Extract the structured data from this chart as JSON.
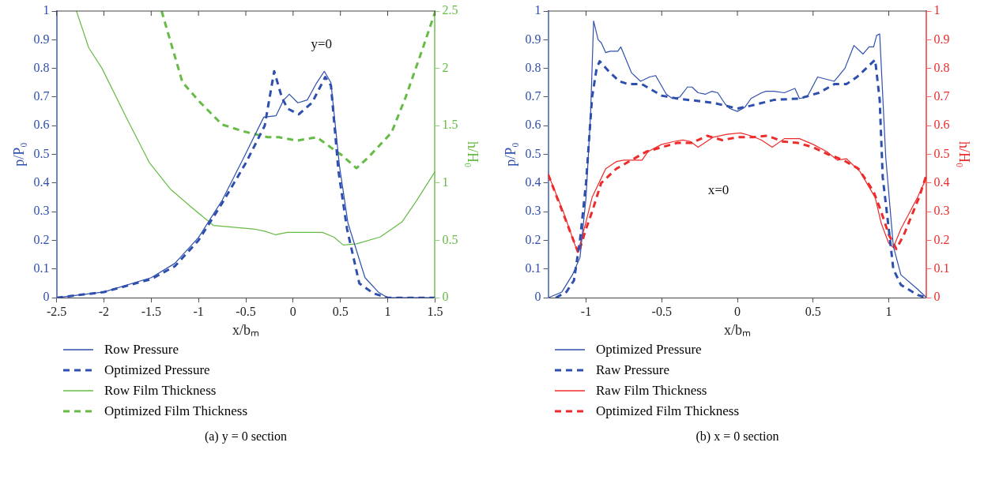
{
  "chart_data": [
    {
      "type": "line",
      "xlabel": "x/bₘ",
      "ylabel": "p/P₀",
      "y2label": "h/H₀",
      "xlim": [
        -2.5,
        1.5
      ],
      "xticks": [
        -2.5,
        -2,
        -1.5,
        -1,
        -0.5,
        0,
        0.5,
        1,
        1.5
      ],
      "ylim": [
        0,
        1
      ],
      "yticks": [
        0,
        0.1,
        0.2,
        0.3,
        0.4,
        0.5,
        0.6,
        0.7,
        0.8,
        0.9,
        1
      ],
      "y2lim": [
        0,
        2.5
      ],
      "y2ticks": [
        0,
        0.5,
        1,
        1.5,
        2,
        2.5
      ],
      "grid": false,
      "legend": "bottom",
      "marker": "none",
      "annotations": [
        "y=0",
        "(a)  y = 0 section"
      ],
      "series": [
        {
          "name": "Row Pressure",
          "color": "#2e4fad",
          "line_style": "solid",
          "x": [
            -2.5,
            -2,
            -1.5,
            -1.25,
            -1,
            -0.75,
            -0.52,
            -0.31,
            -0.18,
            -0.1,
            -0.04,
            0.05,
            0.15,
            0.25,
            0.33,
            0.4,
            0.49,
            0.58,
            0.76,
            0.9,
            1,
            1.5
          ],
          "values": [
            0,
            0.02,
            0.07,
            0.12,
            0.21,
            0.34,
            0.49,
            0.63,
            0.635,
            0.69,
            0.71,
            0.68,
            0.69,
            0.75,
            0.79,
            0.75,
            0.46,
            0.26,
            0.07,
            0.02,
            0,
            0
          ]
        },
        {
          "name": "Optimized Pressure",
          "color": "#2e4fad",
          "line_style": "dashed",
          "x": [
            -2.5,
            -2,
            -1.5,
            -1.25,
            -1,
            -0.75,
            -0.5,
            -0.3,
            -0.2,
            -0.12,
            -0.06,
            0.06,
            0.2,
            0.34,
            0.4,
            0.48,
            0.57,
            0.7,
            0.85,
            1,
            1.5
          ],
          "values": [
            0,
            0.02,
            0.065,
            0.11,
            0.2,
            0.33,
            0.47,
            0.6,
            0.79,
            0.7,
            0.66,
            0.64,
            0.68,
            0.77,
            0.74,
            0.44,
            0.24,
            0.05,
            0.015,
            0,
            0
          ]
        },
        {
          "name": "Row Film Thickness",
          "color": "#66bb44",
          "line_style": "solid",
          "axis": "y2",
          "x": [
            -2.29,
            -2.16,
            -2.02,
            -1.75,
            -1.52,
            -1.3,
            -1.09,
            -0.84,
            -0.42,
            -0.3,
            -0.19,
            -0.06,
            0.31,
            0.43,
            0.53,
            0.67,
            0.92,
            1.15,
            1.3,
            1.5
          ],
          "values": [
            2.5,
            2.18,
            2,
            1.55,
            1.18,
            0.95,
            0.8,
            0.63,
            0.6,
            0.58,
            0.55,
            0.57,
            0.57,
            0.53,
            0.46,
            0.47,
            0.53,
            0.66,
            0.84,
            1.1
          ]
        },
        {
          "name": "Optimized Film Thickness",
          "color": "#66bb44",
          "line_style": "dashed",
          "axis": "y2",
          "x": [
            -1.39,
            -1.17,
            -0.99,
            -0.75,
            -0.52,
            -0.27,
            -0.15,
            0.04,
            0.25,
            0.4,
            0.52,
            0.67,
            0.79,
            1.04,
            1.19,
            1.36,
            1.5
          ],
          "values": [
            2.5,
            1.88,
            1.71,
            1.51,
            1.45,
            1.4,
            1.4,
            1.37,
            1.4,
            1.31,
            1.24,
            1.13,
            1.22,
            1.44,
            1.75,
            2.15,
            2.49
          ]
        }
      ]
    },
    {
      "type": "line",
      "xlabel": "x/bₘ",
      "ylabel": "p/P₀",
      "y2label": "h/H₀",
      "xlim": [
        -1.25,
        1.25
      ],
      "xticks": [
        -1,
        -0.5,
        0,
        0.5,
        1
      ],
      "ylim": [
        0,
        1
      ],
      "yticks": [
        0,
        0.1,
        0.2,
        0.3,
        0.4,
        0.5,
        0.6,
        0.7,
        0.8,
        0.9,
        1
      ],
      "y2lim": [
        0,
        1
      ],
      "y2ticks": [
        0,
        0.1,
        0.2,
        0.3,
        0.4,
        0.5,
        0.6,
        0.7,
        0.8,
        0.9,
        1
      ],
      "grid": false,
      "legend": "bottom",
      "marker": "none",
      "annotations": [
        "x=0",
        "(b)  x = 0 section"
      ],
      "series": [
        {
          "name": "Optimized Pressure",
          "color": "#2e4fad",
          "line_style": "solid",
          "x": [
            -1.25,
            -1.16,
            -1.09,
            -1.04,
            -1,
            -0.97,
            -0.95,
            -0.92,
            -0.9,
            -0.87,
            -0.84,
            -0.79,
            -0.77,
            -0.7,
            -0.64,
            -0.58,
            -0.54,
            -0.47,
            -0.43,
            -0.38,
            -0.33,
            -0.3,
            -0.26,
            -0.21,
            -0.17,
            -0.13,
            -0.08,
            -0.05,
            0,
            0.05,
            0.09,
            0.16,
            0.19,
            0.24,
            0.31,
            0.38,
            0.41,
            0.46,
            0.53,
            0.64,
            0.71,
            0.77,
            0.83,
            0.87,
            0.9,
            0.92,
            0.94,
            0.98,
            1.03,
            1.08,
            1.19,
            1.25
          ],
          "values": [
            0,
            0.02,
            0.08,
            0.14,
            0.35,
            0.64,
            0.965,
            0.9,
            0.89,
            0.855,
            0.86,
            0.86,
            0.875,
            0.785,
            0.755,
            0.77,
            0.775,
            0.71,
            0.695,
            0.7,
            0.735,
            0.735,
            0.715,
            0.71,
            0.72,
            0.715,
            0.675,
            0.66,
            0.65,
            0.665,
            0.695,
            0.715,
            0.72,
            0.72,
            0.715,
            0.73,
            0.695,
            0.7,
            0.77,
            0.755,
            0.8,
            0.88,
            0.85,
            0.875,
            0.875,
            0.915,
            0.92,
            0.49,
            0.18,
            0.08,
            0.03,
            0
          ]
        },
        {
          "name": "Raw Pressure",
          "color": "#2e4fad",
          "line_style": "dashed",
          "x": [
            -1.2,
            -1.13,
            -1.08,
            -1.04,
            -1,
            -0.96,
            -0.93,
            -0.91,
            -0.85,
            -0.78,
            -0.72,
            -0.63,
            -0.5,
            -0.4,
            -0.16,
            0,
            0.09,
            0.24,
            0.41,
            0.54,
            0.64,
            0.72,
            0.79,
            0.87,
            0.91,
            0.94,
            0.96,
            1,
            1.03,
            1.08,
            1.19,
            1.25
          ],
          "values": [
            0,
            0.02,
            0.06,
            0.2,
            0.4,
            0.7,
            0.8,
            0.825,
            0.79,
            0.755,
            0.745,
            0.745,
            0.705,
            0.695,
            0.68,
            0.66,
            0.67,
            0.69,
            0.695,
            0.715,
            0.745,
            0.745,
            0.77,
            0.81,
            0.83,
            0.69,
            0.42,
            0.24,
            0.1,
            0.045,
            0.01,
            0
          ]
        },
        {
          "name": "Raw Film Thickness",
          "color": "#ee2b2b",
          "line_style": "solid",
          "axis": "y2",
          "x": [
            -1.25,
            -1.15,
            -1.07,
            -1.05,
            -1,
            -0.96,
            -0.87,
            -0.8,
            -0.75,
            -0.63,
            -0.59,
            -0.5,
            -0.42,
            -0.36,
            -0.31,
            -0.26,
            -0.16,
            -0.07,
            0.02,
            0.09,
            0.16,
            0.23,
            0.31,
            0.41,
            0.5,
            0.59,
            0.66,
            0.72,
            0.81,
            0.91,
            0.95,
            1,
            1.03,
            1.08,
            1.19,
            1.25
          ],
          "values": [
            0.43,
            0.3,
            0.18,
            0.165,
            0.265,
            0.35,
            0.45,
            0.475,
            0.48,
            0.48,
            0.51,
            0.535,
            0.545,
            0.55,
            0.545,
            0.525,
            0.56,
            0.57,
            0.575,
            0.565,
            0.55,
            0.525,
            0.555,
            0.555,
            0.535,
            0.51,
            0.48,
            0.485,
            0.44,
            0.35,
            0.26,
            0.19,
            0.175,
            0.24,
            0.35,
            0.42
          ]
        },
        {
          "name": "Optimized Film Thickness",
          "color": "#ee2b2b",
          "line_style": "dashed",
          "axis": "y2",
          "x": [
            -1.25,
            -1.05,
            -1,
            -0.96,
            -0.9,
            -0.8,
            -0.7,
            -0.6,
            -0.5,
            -0.4,
            -0.3,
            -0.2,
            -0.1,
            0,
            0.1,
            0.2,
            0.3,
            0.4,
            0.5,
            0.6,
            0.7,
            0.8,
            0.9,
            0.95,
            1,
            1.05,
            1.1,
            1.2,
            1.25
          ],
          "values": [
            0.43,
            0.155,
            0.24,
            0.3,
            0.4,
            0.45,
            0.48,
            0.51,
            0.525,
            0.54,
            0.54,
            0.565,
            0.55,
            0.56,
            0.56,
            0.565,
            0.545,
            0.54,
            0.525,
            0.5,
            0.48,
            0.45,
            0.37,
            0.3,
            0.22,
            0.17,
            0.22,
            0.35,
            0.43
          ]
        }
      ]
    }
  ]
}
